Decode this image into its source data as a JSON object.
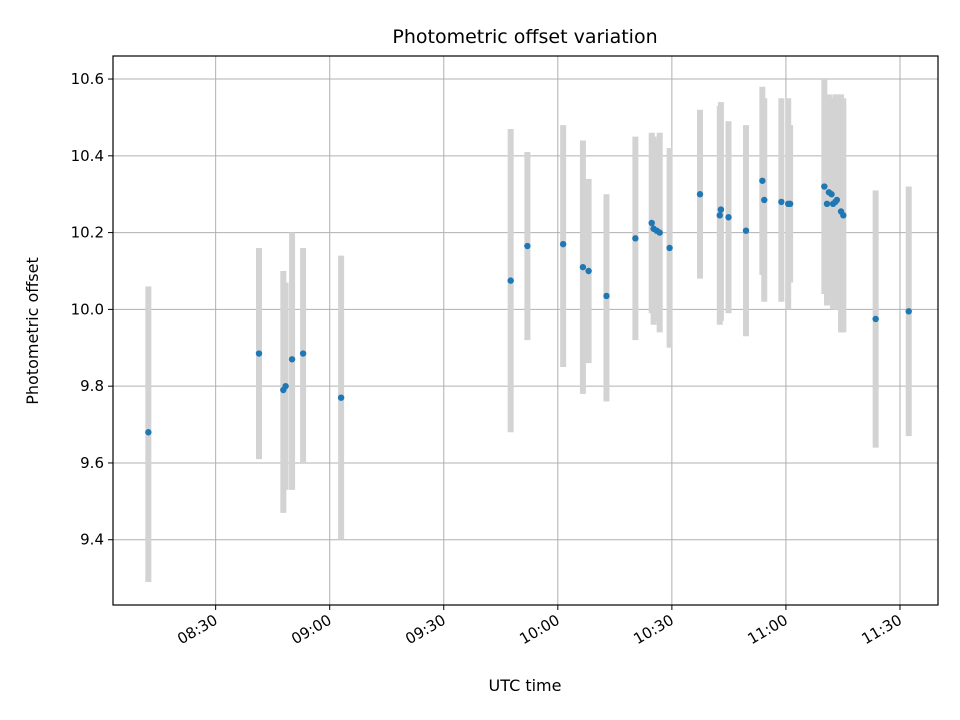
{
  "chart_data": {
    "type": "scatter",
    "title": "Photometric offset variation",
    "xlabel": "UTC time",
    "ylabel": "Photometric offset",
    "x_unit": "HH:MM UTC",
    "xlim": [
      "08:03",
      "11:40"
    ],
    "ylim": [
      9.23,
      10.66
    ],
    "x_ticks": [
      "08:30",
      "09:00",
      "09:30",
      "10:00",
      "10:30",
      "11:00",
      "11:30"
    ],
    "y_ticks": [
      "9.4",
      "9.6",
      "9.8",
      "10.0",
      "10.2",
      "10.4",
      "10.6"
    ],
    "y_tick_values": [
      9.4,
      9.6,
      9.8,
      10.0,
      10.2,
      10.4,
      10.6
    ],
    "grid": true,
    "point_color": "#1f77b4",
    "errorbar_color": "#d3d3d3",
    "points": [
      {
        "t": "08:12:18",
        "y": 9.68,
        "lo": 9.29,
        "hi": 10.06
      },
      {
        "t": "08:41:24",
        "y": 9.885,
        "lo": 9.61,
        "hi": 10.16
      },
      {
        "t": "08:47:48",
        "y": 9.79,
        "lo": 9.47,
        "hi": 10.1
      },
      {
        "t": "08:48:24",
        "y": 9.8,
        "lo": 9.53,
        "hi": 10.07
      },
      {
        "t": "08:50:06",
        "y": 9.87,
        "lo": 9.53,
        "hi": 10.2
      },
      {
        "t": "08:53:00",
        "y": 9.885,
        "lo": 9.6,
        "hi": 10.16
      },
      {
        "t": "09:03:00",
        "y": 9.77,
        "lo": 9.4,
        "hi": 10.14
      },
      {
        "t": "09:47:36",
        "y": 10.075,
        "lo": 9.68,
        "hi": 10.47
      },
      {
        "t": "09:52:00",
        "y": 10.165,
        "lo": 9.92,
        "hi": 10.41
      },
      {
        "t": "10:01:24",
        "y": 10.17,
        "lo": 9.85,
        "hi": 10.48
      },
      {
        "t": "10:06:36",
        "y": 10.11,
        "lo": 9.78,
        "hi": 10.44
      },
      {
        "t": "10:08:06",
        "y": 10.1,
        "lo": 9.86,
        "hi": 10.34
      },
      {
        "t": "10:12:48",
        "y": 10.035,
        "lo": 9.76,
        "hi": 10.3
      },
      {
        "t": "10:20:24",
        "y": 10.185,
        "lo": 9.92,
        "hi": 10.45
      },
      {
        "t": "10:24:42",
        "y": 10.225,
        "lo": 9.99,
        "hi": 10.46
      },
      {
        "t": "10:25:12",
        "y": 10.21,
        "lo": 9.96,
        "hi": 10.45
      },
      {
        "t": "10:26:00",
        "y": 10.205,
        "lo": 9.97,
        "hi": 10.44
      },
      {
        "t": "10:26:48",
        "y": 10.2,
        "lo": 9.94,
        "hi": 10.46
      },
      {
        "t": "10:29:24",
        "y": 10.16,
        "lo": 9.9,
        "hi": 10.42
      },
      {
        "t": "10:37:24",
        "y": 10.3,
        "lo": 10.08,
        "hi": 10.52
      },
      {
        "t": "10:42:36",
        "y": 10.245,
        "lo": 9.96,
        "hi": 10.53
      },
      {
        "t": "10:42:54",
        "y": 10.26,
        "lo": 9.97,
        "hi": 10.54
      },
      {
        "t": "10:44:54",
        "y": 10.24,
        "lo": 9.99,
        "hi": 10.49
      },
      {
        "t": "10:49:30",
        "y": 10.205,
        "lo": 9.93,
        "hi": 10.48
      },
      {
        "t": "10:53:48",
        "y": 10.335,
        "lo": 10.09,
        "hi": 10.58
      },
      {
        "t": "10:54:18",
        "y": 10.285,
        "lo": 10.02,
        "hi": 10.55
      },
      {
        "t": "10:58:48",
        "y": 10.28,
        "lo": 10.02,
        "hi": 10.55
      },
      {
        "t": "11:00:36",
        "y": 10.275,
        "lo": 10.0,
        "hi": 10.55
      },
      {
        "t": "11:01:06",
        "y": 10.275,
        "lo": 10.07,
        "hi": 10.48
      },
      {
        "t": "11:10:06",
        "y": 10.32,
        "lo": 10.04,
        "hi": 10.6
      },
      {
        "t": "11:10:48",
        "y": 10.275,
        "lo": 10.01,
        "hi": 10.55
      },
      {
        "t": "11:11:18",
        "y": 10.305,
        "lo": 10.05,
        "hi": 10.56
      },
      {
        "t": "11:12:00",
        "y": 10.3,
        "lo": 10.03,
        "hi": 10.55
      },
      {
        "t": "11:12:24",
        "y": 10.275,
        "lo": 10.0,
        "hi": 10.55
      },
      {
        "t": "11:13:00",
        "y": 10.28,
        "lo": 10.0,
        "hi": 10.56
      },
      {
        "t": "11:13:24",
        "y": 10.285,
        "lo": 10.0,
        "hi": 10.56
      },
      {
        "t": "11:14:30",
        "y": 10.255,
        "lo": 9.94,
        "hi": 10.56
      },
      {
        "t": "11:15:06",
        "y": 10.245,
        "lo": 9.94,
        "hi": 10.55
      },
      {
        "t": "11:23:36",
        "y": 9.975,
        "lo": 9.64,
        "hi": 10.31
      },
      {
        "t": "11:32:18",
        "y": 9.995,
        "lo": 9.67,
        "hi": 10.32
      }
    ]
  }
}
